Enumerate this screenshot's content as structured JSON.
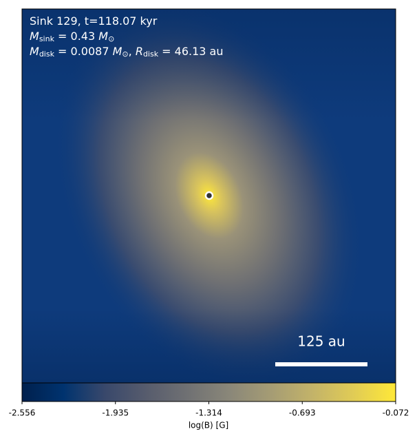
{
  "chart_data": {
    "type": "image",
    "annotations": [
      [
        {
          "text": "Sink 129, t=118.07 kyr"
        }
      ],
      [
        {
          "text": "M",
          "italic": true
        },
        {
          "text": "sink",
          "sub": true
        },
        {
          "text": " = 0.43 "
        },
        {
          "text": "M",
          "italic": true
        },
        {
          "text": "⊙",
          "sub": true
        }
      ],
      [
        {
          "text": "M",
          "italic": true
        },
        {
          "text": "disk",
          "sub": true
        },
        {
          "text": " = 0.0087 "
        },
        {
          "text": "M",
          "italic": true
        },
        {
          "text": "⊙",
          "sub": true
        },
        {
          "text": ", "
        },
        {
          "text": "R",
          "italic": true
        },
        {
          "text": "disk",
          "sub": true
        },
        {
          "text": " = 46.13 au"
        }
      ]
    ],
    "scale_bar_label": "125 au",
    "colorbar": {
      "label": "log(B) [G]",
      "clim": [
        -2.556,
        -0.072
      ],
      "ticks": [
        -2.556,
        -1.935,
        -1.314,
        -0.693,
        -0.072
      ],
      "colormap": "cividis",
      "colors": [
        "#00204d",
        "#00336f",
        "#39486b",
        "#575c6d",
        "#707173",
        "#8a8779",
        "#a59c74",
        "#c3b369",
        "#e1cc55",
        "#fee838"
      ]
    }
  }
}
